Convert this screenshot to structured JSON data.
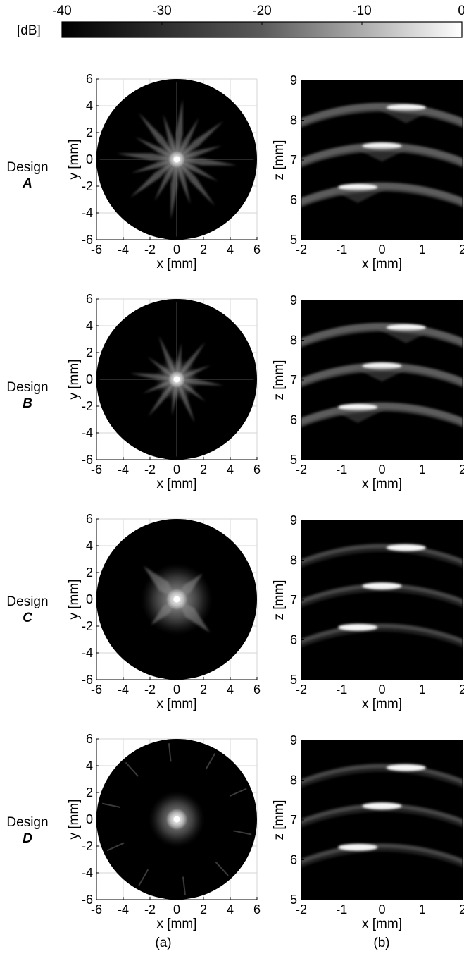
{
  "colorbar": {
    "unit_label": "[dB]",
    "ticks": [
      -40,
      -30,
      -20,
      -10,
      0
    ],
    "range": [
      -40,
      0
    ],
    "colormap": "gray"
  },
  "captions": {
    "left": "(a)",
    "right": "(b)"
  },
  "designs": [
    {
      "prefix": "Design",
      "letter": "A"
    },
    {
      "prefix": "Design",
      "letter": "B"
    },
    {
      "prefix": "Design",
      "letter": "C"
    },
    {
      "prefix": "Design",
      "letter": "D"
    }
  ],
  "chart_data": [
    {
      "type": "heatmap",
      "panel": "(a)",
      "design": "A",
      "xlabel": "x [mm]",
      "ylabel": "y [mm]",
      "xlim": [
        -6,
        6
      ],
      "ylim": [
        -6,
        6
      ],
      "xticks": [
        -6,
        -4,
        -2,
        0,
        2,
        4,
        6
      ],
      "yticks": [
        -6,
        -4,
        -2,
        0,
        2,
        4,
        6
      ],
      "aperture_radius_mm": 6,
      "grid": true,
      "pattern": {
        "arms": 16,
        "core_radius_mm": 0.4,
        "arm_length_mm": 4.5
      }
    },
    {
      "type": "heatmap",
      "panel": "(b)",
      "design": "A",
      "xlabel": "x [mm]",
      "ylabel": "z [mm]",
      "xlim": [
        -2,
        2
      ],
      "ylim": [
        5,
        9
      ],
      "xticks": [
        -2,
        -1,
        0,
        1,
        2
      ],
      "yticks": [
        5,
        6,
        7,
        8,
        9
      ],
      "grid": false,
      "reflectors": [
        {
          "z_mm": 8.35,
          "peak_x_mm": 0.6
        },
        {
          "z_mm": 7.35,
          "peak_x_mm": 0.0
        },
        {
          "z_mm": 6.35,
          "peak_x_mm": -0.6
        }
      ]
    },
    {
      "type": "heatmap",
      "panel": "(a)",
      "design": "B",
      "xlabel": "x [mm]",
      "ylabel": "y [mm]",
      "xlim": [
        -6,
        6
      ],
      "ylim": [
        -6,
        6
      ],
      "xticks": [
        -6,
        -4,
        -2,
        0,
        2,
        4,
        6
      ],
      "yticks": [
        -6,
        -4,
        -2,
        0,
        2,
        4,
        6
      ],
      "aperture_radius_mm": 6,
      "grid": true,
      "pattern": {
        "arms": 12,
        "core_radius_mm": 0.4,
        "arm_length_mm": 3.5
      }
    },
    {
      "type": "heatmap",
      "panel": "(b)",
      "design": "B",
      "xlabel": "x [mm]",
      "ylabel": "z [mm]",
      "xlim": [
        -2,
        2
      ],
      "ylim": [
        5,
        9
      ],
      "xticks": [
        -2,
        -1,
        0,
        1,
        2
      ],
      "yticks": [
        5,
        6,
        7,
        8,
        9
      ],
      "grid": false,
      "reflectors": [
        {
          "z_mm": 8.35,
          "peak_x_mm": 0.6
        },
        {
          "z_mm": 7.35,
          "peak_x_mm": 0.0
        },
        {
          "z_mm": 6.35,
          "peak_x_mm": -0.6
        }
      ]
    },
    {
      "type": "heatmap",
      "panel": "(a)",
      "design": "C",
      "xlabel": "x [mm]",
      "ylabel": "y [mm]",
      "xlim": [
        -6,
        6
      ],
      "ylim": [
        -6,
        6
      ],
      "xticks": [
        -6,
        -4,
        -2,
        0,
        2,
        4,
        6
      ],
      "yticks": [
        -6,
        -4,
        -2,
        0,
        2,
        4,
        6
      ],
      "aperture_radius_mm": 6,
      "grid": true,
      "pattern": {
        "arms": 4,
        "core_radius_mm": 0.5,
        "arm_length_mm": 3.5
      }
    },
    {
      "type": "heatmap",
      "panel": "(b)",
      "design": "C",
      "xlabel": "x [mm]",
      "ylabel": "z [mm]",
      "xlim": [
        -2,
        2
      ],
      "ylim": [
        5,
        9
      ],
      "xticks": [
        -2,
        -1,
        0,
        1,
        2
      ],
      "yticks": [
        5,
        6,
        7,
        8,
        9
      ],
      "grid": false,
      "reflectors": [
        {
          "z_mm": 8.35,
          "peak_x_mm": 0.6
        },
        {
          "z_mm": 7.35,
          "peak_x_mm": 0.0
        },
        {
          "z_mm": 6.35,
          "peak_x_mm": -0.6
        }
      ]
    },
    {
      "type": "heatmap",
      "panel": "(a)",
      "design": "D",
      "xlabel": "x [mm]",
      "ylabel": "y [mm]",
      "xlim": [
        -6,
        6
      ],
      "ylim": [
        -6,
        6
      ],
      "xticks": [
        -6,
        -4,
        -2,
        0,
        2,
        4,
        6
      ],
      "yticks": [
        -6,
        -4,
        -2,
        0,
        2,
        4,
        6
      ],
      "aperture_radius_mm": 6,
      "grid": true,
      "pattern": {
        "arms": 0,
        "core_radius_mm": 0.5,
        "halo_radius_mm": 2.0
      }
    },
    {
      "type": "heatmap",
      "panel": "(b)",
      "design": "D",
      "xlabel": "x [mm]",
      "ylabel": "z [mm]",
      "xlim": [
        -2,
        2
      ],
      "ylim": [
        5,
        9
      ],
      "xticks": [
        -2,
        -1,
        0,
        1,
        2
      ],
      "yticks": [
        5,
        6,
        7,
        8,
        9
      ],
      "grid": false,
      "reflectors": [
        {
          "z_mm": 8.35,
          "peak_x_mm": 0.6
        },
        {
          "z_mm": 7.35,
          "peak_x_mm": 0.0
        },
        {
          "z_mm": 6.35,
          "peak_x_mm": -0.6
        }
      ]
    }
  ]
}
